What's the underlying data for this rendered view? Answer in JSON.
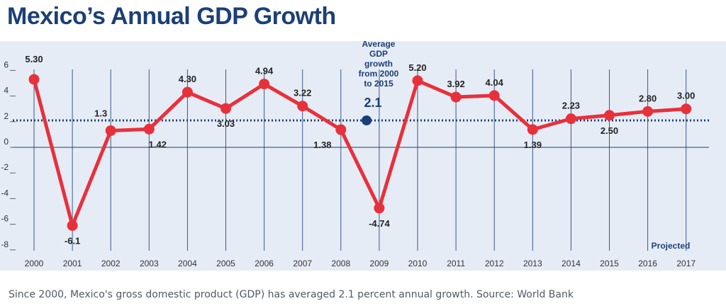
{
  "title": "Mexico’s Annual GDP Growth",
  "caption": "Since 2000, Mexico's gross domestic product (GDP) has averaged 2.1 percent annual growth. Source: World Bank",
  "colors": {
    "title": "#1b3f78",
    "series": "#e8303b",
    "gridline": "#1b3f78",
    "average": "#1b3f78",
    "panel": "#e6ecf5"
  },
  "chart_data": {
    "type": "line",
    "title": "Mexico’s Annual GDP Growth",
    "x": [
      "2000",
      "2001",
      "2002",
      "2003",
      "2004",
      "2005",
      "2006",
      "2007",
      "2008",
      "2009",
      "2010",
      "2011",
      "2012",
      "2013",
      "2014",
      "2015",
      "2016",
      "2017"
    ],
    "series": [
      {
        "values": [
          5.3,
          -6.1,
          1.3,
          1.42,
          4.3,
          3.03,
          4.94,
          3.22,
          1.38,
          -4.74,
          5.2,
          3.92,
          4.04,
          1.39,
          2.23,
          2.5,
          2.8,
          3.0
        ],
        "labels": [
          "5.30",
          "-6.1",
          "1.3",
          "1.42",
          "4.30",
          "3.03",
          "4.94",
          "3.22",
          "1.38",
          "-4.74",
          "5.20",
          "3.92",
          "4.04",
          "1.39",
          "2.23",
          "2.50",
          "2.80",
          "3.00"
        ]
      }
    ],
    "average": {
      "value": 2.1,
      "label_lines": [
        "Average",
        "GDP",
        "growth",
        "from 2000",
        "to 2015"
      ],
      "value_label": "2.1"
    },
    "y_ticks": [
      "6",
      "4",
      "2",
      "0",
      "-2",
      "-4",
      "-6",
      "-8"
    ],
    "ylim": [
      -8,
      6
    ],
    "projected_label": "Projected",
    "projected_from": "2016",
    "grid": true
  }
}
